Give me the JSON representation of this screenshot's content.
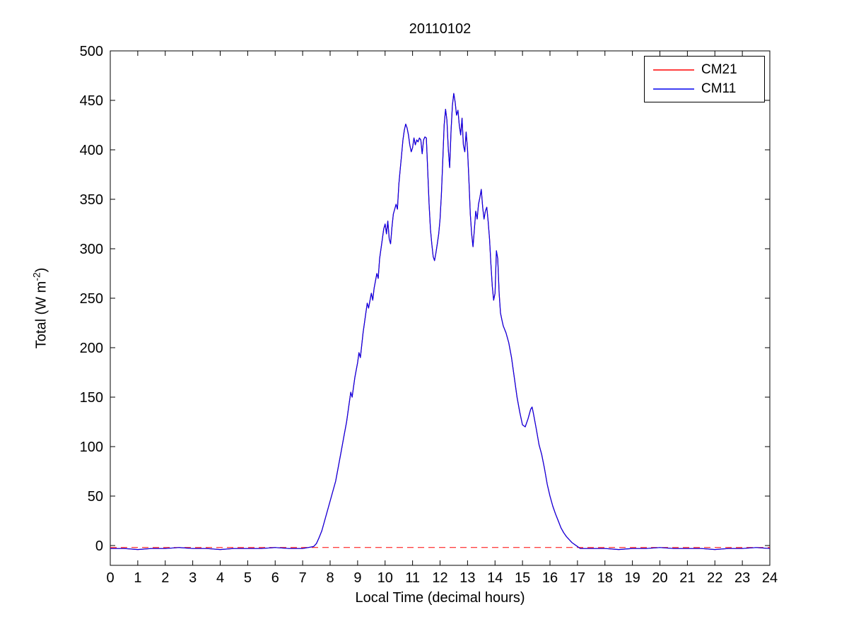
{
  "figure": {
    "background": "#ffffff"
  },
  "chart_data": {
    "type": "line",
    "title": "20110102",
    "xlabel": "Local Time (decimal hours)",
    "ylabel": "Total (W m-2)",
    "ylabel_parts": {
      "prefix": "Total (W m",
      "superscript": "-2",
      "suffix": ")"
    },
    "xlim": [
      0,
      24
    ],
    "ylim": [
      -20,
      500
    ],
    "xticks": [
      0,
      1,
      2,
      3,
      4,
      5,
      6,
      7,
      8,
      9,
      10,
      11,
      12,
      13,
      14,
      15,
      16,
      17,
      18,
      19,
      20,
      21,
      22,
      23,
      24
    ],
    "yticks": [
      0,
      50,
      100,
      150,
      200,
      250,
      300,
      350,
      400,
      450,
      500
    ],
    "grid": false,
    "box": true,
    "axis_color": "#000000",
    "legend": {
      "position": "top-right",
      "border_color": "#000000",
      "background": "#ffffff"
    },
    "reference_line": {
      "y": -2,
      "color": "#ff0000",
      "style": "dashed"
    },
    "x": [
      0,
      0.5,
      1,
      1.5,
      2,
      2.5,
      3,
      3.5,
      4,
      4.5,
      5,
      5.5,
      6,
      6.5,
      7,
      7.2,
      7.4,
      7.5,
      7.6,
      7.7,
      7.8,
      7.9,
      8,
      8.1,
      8.2,
      8.3,
      8.4,
      8.5,
      8.6,
      8.7,
      8.75,
      8.8,
      8.9,
      9,
      9.05,
      9.1,
      9.2,
      9.3,
      9.35,
      9.4,
      9.5,
      9.55,
      9.6,
      9.7,
      9.75,
      9.8,
      9.9,
      9.95,
      10,
      10.05,
      10.1,
      10.15,
      10.2,
      10.25,
      10.3,
      10.4,
      10.45,
      10.5,
      10.55,
      10.6,
      10.65,
      10.7,
      10.75,
      10.8,
      10.85,
      10.9,
      10.95,
      11,
      11.05,
      11.1,
      11.15,
      11.2,
      11.25,
      11.3,
      11.35,
      11.4,
      11.45,
      11.5,
      11.55,
      11.6,
      11.65,
      11.7,
      11.75,
      11.8,
      11.85,
      11.9,
      11.95,
      12,
      12.05,
      12.1,
      12.15,
      12.2,
      12.25,
      12.3,
      12.35,
      12.4,
      12.45,
      12.5,
      12.55,
      12.6,
      12.65,
      12.7,
      12.75,
      12.8,
      12.85,
      12.9,
      12.95,
      13,
      13.05,
      13.1,
      13.15,
      13.2,
      13.25,
      13.3,
      13.35,
      13.4,
      13.45,
      13.5,
      13.55,
      13.6,
      13.65,
      13.7,
      13.75,
      13.8,
      13.85,
      13.9,
      13.95,
      14,
      14.05,
      14.1,
      14.15,
      14.2,
      14.25,
      14.3,
      14.4,
      14.5,
      14.6,
      14.7,
      14.8,
      14.9,
      15,
      15.1,
      15.2,
      15.3,
      15.35,
      15.4,
      15.5,
      15.6,
      15.7,
      15.8,
      15.9,
      16,
      16.1,
      16.2,
      16.3,
      16.4,
      16.5,
      16.6,
      16.7,
      16.8,
      16.9,
      17,
      17.1,
      17.5,
      18,
      18.5,
      19,
      19.5,
      20,
      20.5,
      21,
      21.5,
      22,
      22.5,
      23,
      23.5,
      24
    ],
    "series": [
      {
        "name": "CM21",
        "color": "#ff0000",
        "style": "solid",
        "values": [
          -3,
          -3,
          -4,
          -3,
          -3,
          -2,
          -3,
          -3,
          -4,
          -3,
          -3,
          -3,
          -2,
          -3,
          -3,
          -2,
          -1,
          2,
          8,
          15,
          25,
          35,
          45,
          55,
          65,
          80,
          95,
          110,
          125,
          145,
          155,
          150,
          170,
          185,
          195,
          190,
          215,
          235,
          245,
          240,
          255,
          248,
          260,
          275,
          270,
          290,
          310,
          320,
          325,
          315,
          328,
          310,
          305,
          322,
          335,
          345,
          340,
          365,
          380,
          395,
          410,
          420,
          426,
          422,
          415,
          405,
          398,
          402,
          412,
          405,
          410,
          408,
          412,
          410,
          396,
          410,
          413,
          412,
          380,
          345,
          320,
          305,
          292,
          288,
          296,
          305,
          315,
          330,
          355,
          390,
          425,
          441,
          430,
          400,
          382,
          420,
          445,
          457,
          448,
          435,
          440,
          425,
          415,
          432,
          405,
          398,
          418,
          400,
          370,
          335,
          315,
          302,
          320,
          338,
          330,
          345,
          352,
          360,
          342,
          330,
          338,
          342,
          328,
          310,
          285,
          262,
          248,
          255,
          298,
          290,
          255,
          235,
          228,
          222,
          215,
          205,
          190,
          170,
          150,
          135,
          122,
          120,
          128,
          138,
          140,
          133,
          118,
          102,
          92,
          78,
          62,
          50,
          40,
          32,
          25,
          18,
          13,
          9,
          6,
          3,
          1,
          -1,
          -3,
          -3,
          -3,
          -4,
          -3,
          -3,
          -2,
          -3,
          -3,
          -3,
          -4,
          -3,
          -3,
          -2,
          -3
        ]
      },
      {
        "name": "CM11",
        "color": "#0000ee",
        "style": "solid",
        "values": [
          -3,
          -3,
          -4,
          -3,
          -3,
          -2,
          -3,
          -3,
          -4,
          -3,
          -3,
          -3,
          -2,
          -3,
          -3,
          -2,
          -1,
          2,
          8,
          15,
          25,
          35,
          45,
          55,
          65,
          80,
          95,
          110,
          125,
          145,
          155,
          150,
          170,
          185,
          195,
          190,
          215,
          235,
          245,
          240,
          255,
          248,
          260,
          275,
          270,
          290,
          310,
          320,
          325,
          315,
          328,
          310,
          305,
          322,
          335,
          345,
          340,
          365,
          380,
          395,
          410,
          420,
          426,
          422,
          415,
          405,
          398,
          402,
          412,
          405,
          410,
          408,
          412,
          410,
          396,
          410,
          413,
          412,
          380,
          345,
          320,
          305,
          292,
          288,
          296,
          305,
          315,
          330,
          355,
          390,
          425,
          441,
          430,
          400,
          382,
          420,
          445,
          457,
          448,
          435,
          440,
          425,
          415,
          432,
          405,
          398,
          418,
          400,
          370,
          335,
          315,
          302,
          320,
          338,
          330,
          345,
          352,
          360,
          342,
          330,
          338,
          342,
          328,
          310,
          285,
          262,
          248,
          255,
          298,
          290,
          255,
          235,
          228,
          222,
          215,
          205,
          190,
          170,
          150,
          135,
          122,
          120,
          128,
          138,
          140,
          133,
          118,
          102,
          92,
          78,
          62,
          50,
          40,
          32,
          25,
          18,
          13,
          9,
          6,
          3,
          1,
          -1,
          -3,
          -3,
          -3,
          -4,
          -3,
          -3,
          -2,
          -3,
          -3,
          -3,
          -4,
          -3,
          -3,
          -2,
          -3
        ]
      }
    ]
  }
}
